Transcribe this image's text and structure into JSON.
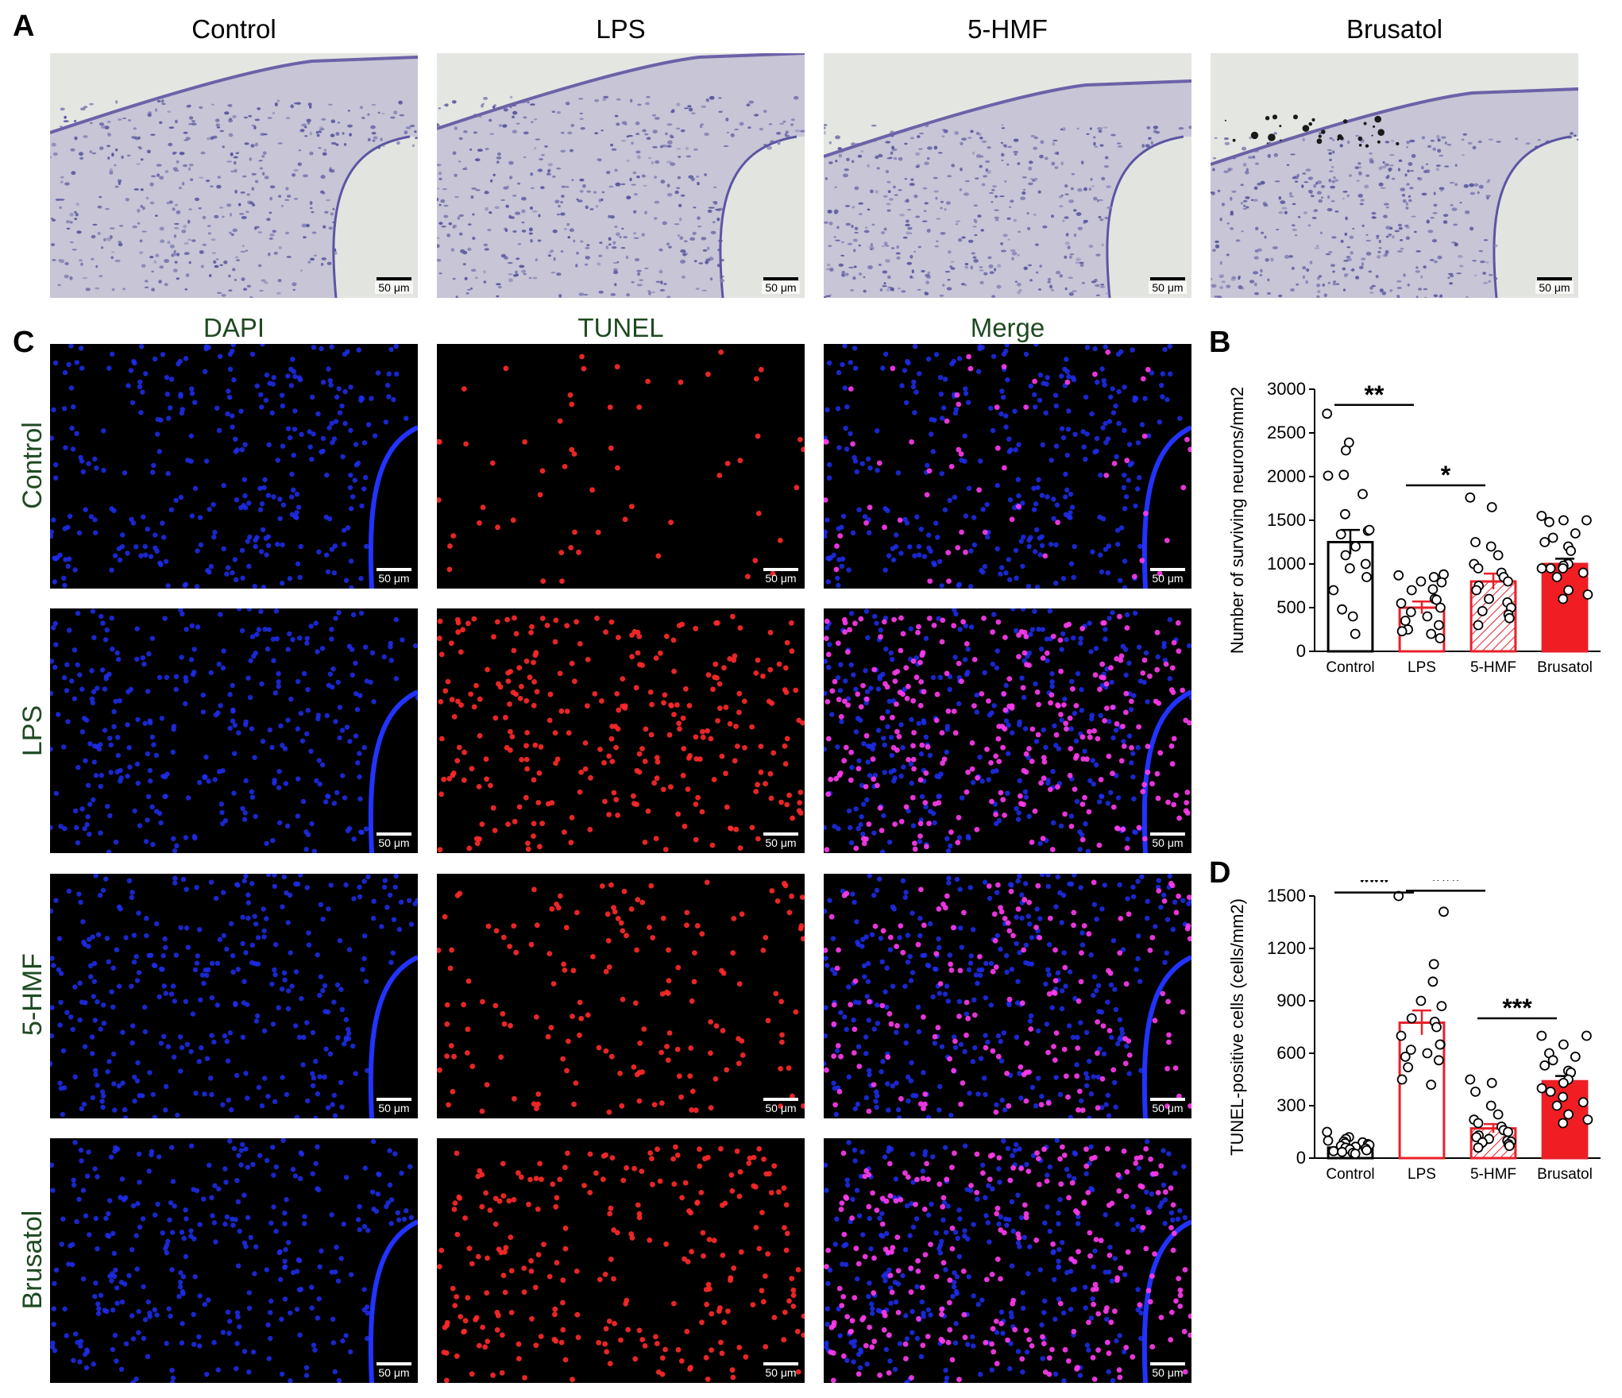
{
  "panel_labels": {
    "a": "A",
    "b": "B",
    "c": "C",
    "d": "D"
  },
  "panel_a": {
    "titles": [
      "Control",
      "LPS",
      "5-HMF",
      "Brusatol"
    ],
    "scale_label": "50 μm"
  },
  "panel_c": {
    "columns": [
      "DAPI",
      "TUNEL",
      "Merge"
    ],
    "rows": [
      "Control",
      "LPS",
      "5-HMF",
      "Brusatol"
    ],
    "scale_label": "50 μm"
  },
  "chart_data": [
    {
      "type": "bar",
      "panel": "B",
      "ylabel": "Number of surviving neurons/mm2",
      "ylim": [
        0,
        3000
      ],
      "yticks": [
        0,
        500,
        1000,
        1500,
        2000,
        2500,
        3000
      ],
      "categories": [
        "Control",
        "LPS",
        "5-HMF",
        "Brusatol"
      ],
      "values": [
        1250,
        500,
        800,
        1000
      ],
      "errors": [
        140,
        70,
        90,
        60
      ],
      "points": [
        [
          2720,
          2390,
          2300,
          2010,
          2020,
          1800,
          1570,
          1380,
          1390,
          1340,
          1200,
          1100,
          1000,
          950,
          850,
          700,
          480,
          400,
          200
        ],
        [
          870,
          880,
          850,
          710,
          800,
          790,
          700,
          600,
          590,
          550,
          500,
          450,
          400,
          350,
          300,
          250,
          230,
          200,
          150
        ],
        [
          1760,
          1650,
          1250,
          1200,
          1100,
          1000,
          950,
          900,
          850,
          800,
          750,
          700,
          600,
          560,
          500,
          460,
          420,
          380,
          300
        ],
        [
          1550,
          1500,
          1500,
          1480,
          1350,
          1300,
          1250,
          1200,
          1150,
          1000,
          980,
          950,
          950,
          950,
          900,
          850,
          700,
          650,
          600
        ]
      ],
      "styles": [
        {
          "fill": "#ffffff",
          "stroke": "#000000",
          "hatch": false
        },
        {
          "fill": "#ffffff",
          "stroke": "#e8202a",
          "hatch": false
        },
        {
          "fill": "#ffffff",
          "stroke": "#e8202a",
          "hatch": true
        },
        {
          "fill": "#f01e23",
          "stroke": "#e8202a",
          "hatch": false
        }
      ],
      "significance": [
        {
          "from": 0,
          "to": 1,
          "y": 2820,
          "label": "**"
        },
        {
          "from": 1,
          "to": 2,
          "y": 1900,
          "label": "*"
        }
      ]
    },
    {
      "type": "bar",
      "panel": "D",
      "ylabel": "TUNEL-positive cells (cells/mm2)",
      "ylim": [
        0,
        1500
      ],
      "yticks": [
        0,
        300,
        600,
        900,
        1200,
        1500
      ],
      "categories": [
        "Control",
        "LPS",
        "5-HMF",
        "Brusatol"
      ],
      "values": [
        60,
        775,
        170,
        440
      ],
      "errors": [
        15,
        70,
        25,
        30
      ],
      "points": [
        [
          150,
          120,
          110,
          100,
          95,
          90,
          85,
          80,
          75,
          70,
          65,
          60,
          55,
          50,
          45,
          40,
          35,
          30,
          25
        ],
        [
          1500,
          1410,
          1110,
          1010,
          900,
          870,
          800,
          780,
          750,
          700,
          650,
          620,
          600,
          580,
          560,
          520,
          450,
          420,
          650
        ],
        [
          450,
          430,
          380,
          300,
          250,
          220,
          200,
          180,
          160,
          150,
          130,
          120,
          110,
          100,
          95,
          90,
          80,
          70,
          60
        ],
        [
          700,
          700,
          650,
          600,
          580,
          560,
          530,
          500,
          490,
          450,
          430,
          400,
          380,
          350,
          320,
          300,
          250,
          220,
          200
        ]
      ],
      "styles": [
        {
          "fill": "#ffffff",
          "stroke": "#000000",
          "hatch": false
        },
        {
          "fill": "#ffffff",
          "stroke": "#e8202a",
          "hatch": false
        },
        {
          "fill": "#ffffff",
          "stroke": "#e8202a",
          "hatch": true
        },
        {
          "fill": "#f01e23",
          "stroke": "#e8202a",
          "hatch": false
        }
      ],
      "significance": [
        {
          "from": 0,
          "to": 1,
          "y": 1520,
          "label": "***"
        },
        {
          "from": 1,
          "to": 2,
          "y": 1530,
          "label": "***"
        },
        {
          "from": 2,
          "to": 3,
          "y": 800,
          "label": "***"
        }
      ]
    }
  ]
}
